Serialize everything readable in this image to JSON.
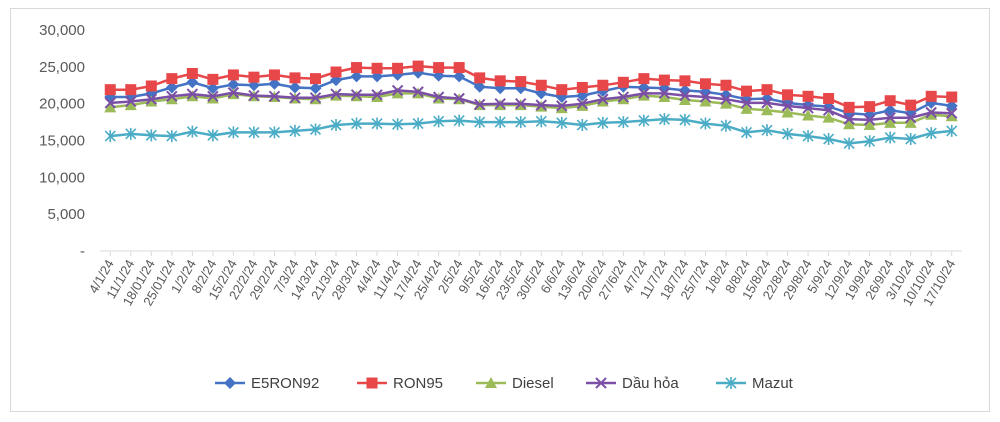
{
  "chart_data": {
    "type": "line",
    "title": "",
    "xlabel": "",
    "ylabel": "",
    "ylim": [
      0,
      30000
    ],
    "yticks": [
      "-",
      "5,000",
      "10,000",
      "15,000",
      "20,000",
      "25,000",
      "30,000"
    ],
    "grid": false,
    "legend_position": "bottom",
    "x": [
      "4/1/24",
      "11/1/24",
      "18/01/24",
      "25/01/24",
      "1/2/24",
      "8/2/24",
      "15/2/24",
      "22/2/24",
      "29/2/24",
      "7/3/24",
      "14/3/24",
      "21/3/24",
      "28/3/24",
      "4/4/24",
      "11/4/24",
      "17/4/24",
      "25/4/24",
      "2/5/24",
      "9/5/24",
      "16/5/24",
      "23/5/24",
      "30/5/24",
      "6/6/24",
      "13/6/24",
      "20/6/24",
      "27/6/24",
      "4/7/24",
      "11/7/24",
      "18/7/24",
      "25/7/24",
      "1/8/24",
      "8/8/24",
      "15/8/24",
      "22/8/24",
      "29/8/24",
      "5/9/24",
      "12/9/24",
      "19/9/24",
      "26/9/24",
      "3/10/24",
      "10/10/24",
      "17/10/24"
    ],
    "series": [
      {
        "name": "E5RON92",
        "color": "#4472C4",
        "marker": "diamond",
        "values": [
          20900,
          20900,
          21400,
          22200,
          22900,
          22100,
          22600,
          22500,
          22700,
          22200,
          22100,
          23200,
          23700,
          23700,
          23900,
          24200,
          23800,
          23700,
          22300,
          22100,
          22100,
          21400,
          20900,
          21100,
          21700,
          22300,
          22200,
          22100,
          21800,
          21600,
          21200,
          20600,
          20700,
          20100,
          19800,
          19600,
          18700,
          18500,
          19100,
          18700,
          20100,
          19700
        ]
      },
      {
        "name": "RON95",
        "color": "#E8474A",
        "marker": "square",
        "values": [
          21900,
          21900,
          22400,
          23400,
          24100,
          23300,
          23900,
          23600,
          23900,
          23500,
          23400,
          24300,
          24900,
          24800,
          24800,
          25100,
          24900,
          24900,
          23500,
          23100,
          23000,
          22500,
          21900,
          22200,
          22500,
          22900,
          23400,
          23200,
          23100,
          22700,
          22500,
          21700,
          21900,
          21200,
          21000,
          20700,
          19500,
          19600,
          20400,
          19800,
          21000,
          20900
        ]
      },
      {
        "name": "Diesel",
        "color": "#9BBB59",
        "marker": "triangle",
        "values": [
          19500,
          19800,
          20300,
          20600,
          21000,
          20700,
          21300,
          21000,
          20900,
          20700,
          20600,
          21100,
          21000,
          20900,
          21400,
          21400,
          20700,
          20600,
          19800,
          19800,
          19800,
          19600,
          19400,
          19700,
          20300,
          20600,
          21100,
          20900,
          20500,
          20300,
          20000,
          19300,
          19100,
          18800,
          18400,
          18100,
          17200,
          17100,
          17400,
          17400,
          18500,
          18300
        ]
      },
      {
        "name": "Dầu hỏa",
        "color": "#7B4FA5",
        "marker": "x",
        "values": [
          20100,
          20300,
          20600,
          21000,
          21300,
          21000,
          21500,
          21100,
          21000,
          20800,
          20800,
          21300,
          21200,
          21200,
          21800,
          21600,
          20900,
          20700,
          19900,
          20000,
          20000,
          19800,
          19700,
          20000,
          20600,
          20900,
          21400,
          21400,
          21100,
          20900,
          20600,
          20100,
          20100,
          19700,
          19400,
          19100,
          17900,
          17800,
          18100,
          18100,
          18800,
          18700
        ]
      },
      {
        "name": "Mazut",
        "color": "#4BACC6",
        "marker": "asterisk",
        "values": [
          15600,
          15900,
          15700,
          15600,
          16200,
          15700,
          16100,
          16100,
          16100,
          16300,
          16500,
          17100,
          17300,
          17300,
          17200,
          17300,
          17600,
          17700,
          17500,
          17500,
          17500,
          17600,
          17400,
          17100,
          17400,
          17500,
          17700,
          17900,
          17800,
          17300,
          17000,
          16100,
          16400,
          15900,
          15600,
          15200,
          14600,
          14900,
          15400,
          15200,
          16000,
          16300
        ]
      }
    ]
  }
}
